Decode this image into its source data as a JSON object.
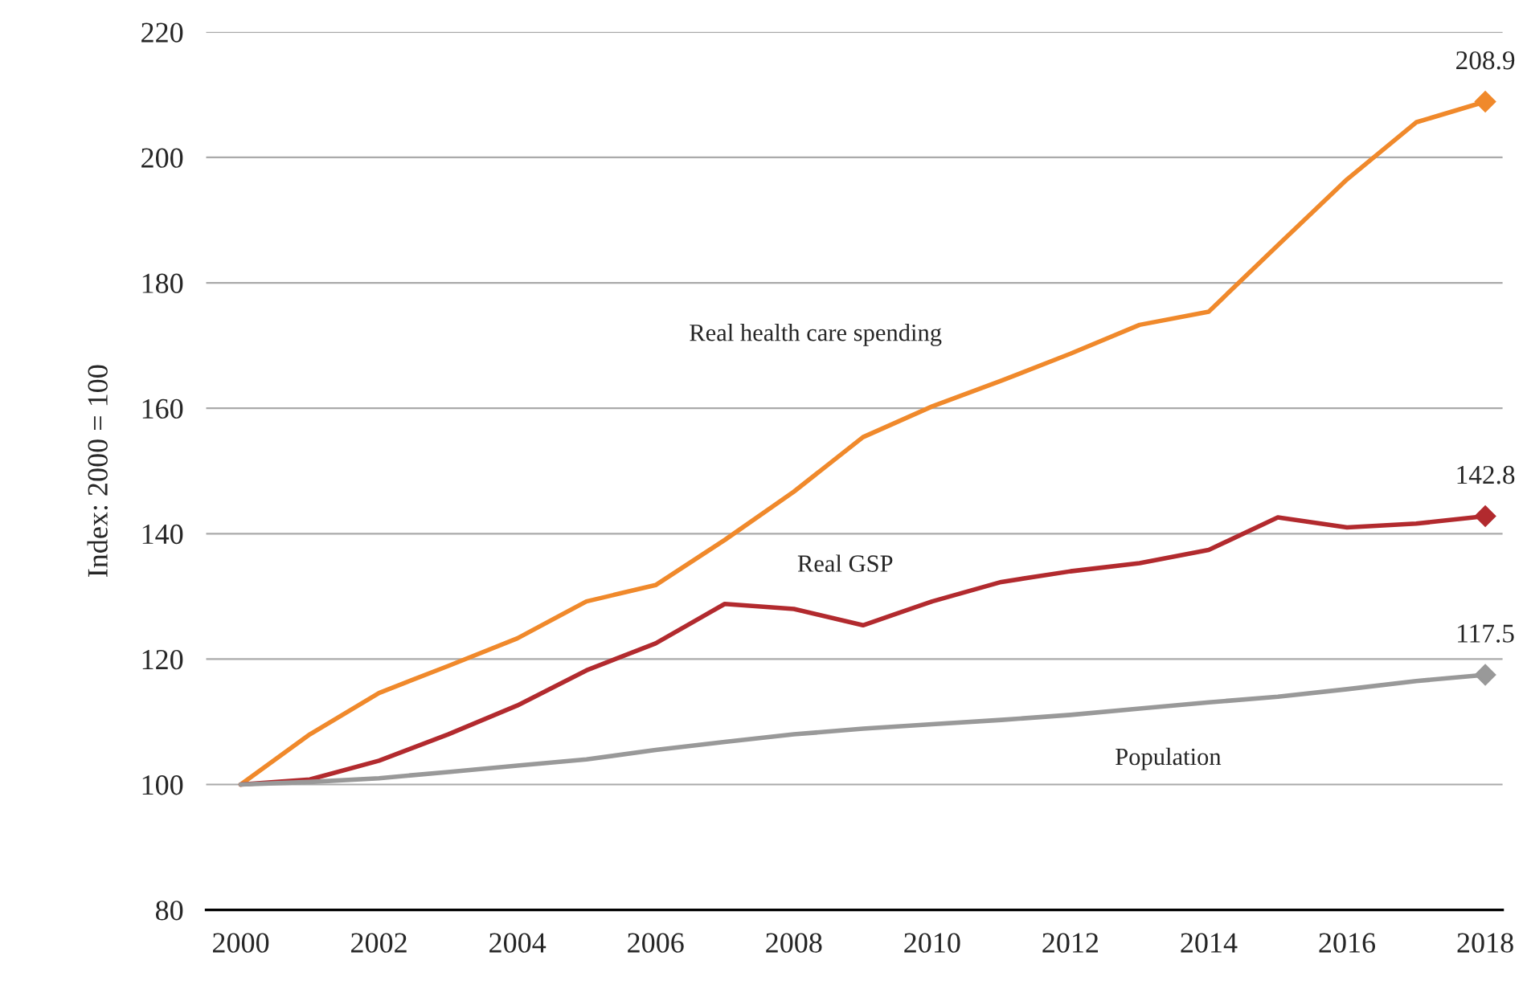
{
  "chart_data": {
    "type": "line",
    "ylabel": "Index: 2000 = 100",
    "x": [
      2000,
      2001,
      2002,
      2003,
      2004,
      2005,
      2006,
      2007,
      2008,
      2009,
      2010,
      2011,
      2012,
      2013,
      2014,
      2015,
      2016,
      2017,
      2018
    ],
    "series": [
      {
        "name": "Real health care spending",
        "color": "#f0892b",
        "values": [
          100,
          108,
          114.6,
          118.9,
          123.3,
          129.2,
          131.8,
          139,
          146.7,
          155.4,
          160.3,
          164.4,
          168.7,
          173.3,
          175.4,
          186,
          196.5,
          205.6,
          208.9
        ],
        "value_labels": [
          null,
          null,
          null,
          null,
          null,
          null,
          null,
          null,
          null,
          null,
          null,
          null,
          null,
          null,
          null,
          null,
          null,
          null,
          "208.9"
        ]
      },
      {
        "name": "Real GSP",
        "color": "#b22a2e",
        "values": [
          100,
          100.8,
          103.8,
          108,
          112.6,
          118.2,
          122.5,
          128.8,
          128,
          125.4,
          129.2,
          132.3,
          134,
          135.3,
          137.4,
          142.6,
          141,
          141.6,
          142.8
        ],
        "value_labels": [
          null,
          null,
          null,
          null,
          null,
          null,
          null,
          null,
          null,
          null,
          null,
          null,
          null,
          null,
          null,
          null,
          null,
          null,
          "142.8"
        ]
      },
      {
        "name": "Population",
        "color": "#999999",
        "values": [
          100,
          100.4,
          101,
          102,
          103,
          104,
          105.5,
          106.8,
          108,
          108.9,
          109.6,
          110.3,
          111.1,
          112.1,
          113.1,
          114,
          115.2,
          116.5,
          117.5
        ],
        "value_labels": [
          null,
          null,
          null,
          null,
          null,
          null,
          null,
          null,
          null,
          null,
          null,
          null,
          null,
          null,
          null,
          null,
          null,
          null,
          "117.5"
        ]
      }
    ],
    "xlim": [
      1999.5,
      2018.25
    ],
    "xticks": [
      2000,
      2002,
      2004,
      2006,
      2008,
      2010,
      2012,
      2014,
      2016,
      2018
    ],
    "ylim": [
      80,
      220
    ],
    "yticks": [
      80,
      100,
      120,
      140,
      160,
      180,
      200,
      220
    ],
    "grid": "y",
    "line_style": "solid"
  }
}
